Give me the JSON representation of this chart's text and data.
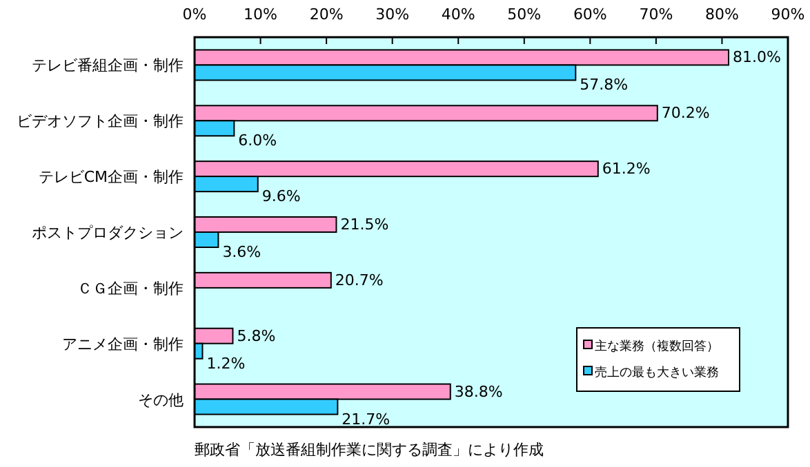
{
  "chart_data": {
    "type": "bar",
    "orientation": "horizontal",
    "categories": [
      "テレビ番組企画・制作",
      "ビデオソフト企画・制作",
      "テレビCM企画・制作",
      "ポストプロダクション",
      "ＣＧ企画・制作",
      "アニメ企画・制作",
      "その他"
    ],
    "series": [
      {
        "name": "主な業務（複数回答）",
        "color": "#ff99cc",
        "values": [
          81.0,
          70.2,
          61.2,
          21.5,
          20.7,
          5.8,
          38.8
        ],
        "value_labels": [
          "81.0%",
          "70.2%",
          "61.2%",
          "21.5%",
          "20.7%",
          "5.8%",
          "38.8%"
        ]
      },
      {
        "name": "売上の最も大きい業務",
        "color": "#33ccff",
        "values": [
          57.8,
          6.0,
          9.6,
          3.6,
          null,
          1.2,
          21.7
        ],
        "value_labels": [
          "57.8%",
          "6.0%",
          "9.6%",
          "3.6%",
          null,
          "1.2%",
          "21.7%"
        ]
      }
    ],
    "xlim": [
      0,
      90
    ],
    "xticks": [
      {
        "value": 0,
        "label": "0%"
      },
      {
        "value": 10,
        "label": "10%"
      },
      {
        "value": 20,
        "label": "20%"
      },
      {
        "value": 30,
        "label": "30%"
      },
      {
        "value": 40,
        "label": "40%"
      },
      {
        "value": 50,
        "label": "50%"
      },
      {
        "value": 60,
        "label": "60%"
      },
      {
        "value": 70,
        "label": "70%"
      },
      {
        "value": 80,
        "label": "80%"
      },
      {
        "value": 90,
        "label": "90%"
      }
    ],
    "legend": "bottom right",
    "annotations": [
      "郵政省「放送番組制作業に関する調査」により作成"
    ]
  }
}
